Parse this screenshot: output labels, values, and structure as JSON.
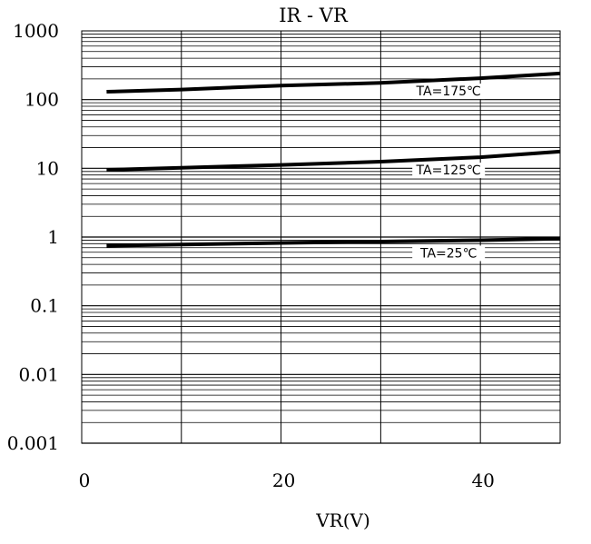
{
  "chart_data": {
    "type": "line",
    "title": "IR - VR",
    "xlabel": "VR(V)",
    "ylabel": "",
    "x_scale": "linear",
    "y_scale": "log",
    "xlim": [
      0,
      48
    ],
    "ylim": [
      0.001,
      1000
    ],
    "grid": true,
    "x_ticks": [
      {
        "value": 0,
        "label": "0"
      },
      {
        "value": 20,
        "label": "20"
      },
      {
        "value": 40,
        "label": "40"
      }
    ],
    "y_ticks": [
      {
        "value": 1000,
        "label": "1000"
      },
      {
        "value": 100,
        "label": "100"
      },
      {
        "value": 10,
        "label": "10"
      },
      {
        "value": 1,
        "label": "1"
      },
      {
        "value": 0.1,
        "label": "0.1"
      },
      {
        "value": 0.01,
        "label": "0.01"
      },
      {
        "value": 0.001,
        "label": "0.001"
      }
    ],
    "series": [
      {
        "name": "TA=175℃",
        "x": [
          2.5,
          10,
          20,
          30,
          40,
          48
        ],
        "y": [
          130,
          140,
          160,
          175,
          205,
          240
        ]
      },
      {
        "name": "TA=125℃",
        "x": [
          2.5,
          10,
          20,
          30,
          40,
          48
        ],
        "y": [
          9.5,
          10.2,
          11.2,
          12.5,
          14.5,
          17.5
        ]
      },
      {
        "name": "TA=25℃",
        "x": [
          2.5,
          10,
          20,
          30,
          40,
          48
        ],
        "y": [
          0.75,
          0.78,
          0.82,
          0.86,
          0.9,
          0.95
        ]
      }
    ],
    "annotations": [
      {
        "text": "TA=175℃",
        "series": 0
      },
      {
        "text": "TA=125℃",
        "series": 1
      },
      {
        "text": "TA=25℃",
        "series": 2
      }
    ]
  }
}
